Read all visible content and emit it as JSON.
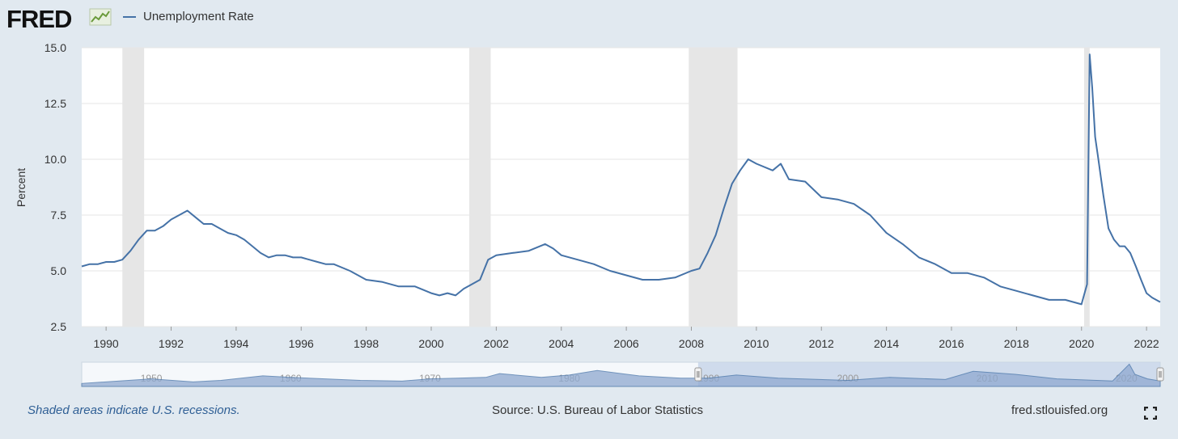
{
  "header": {
    "logo_text": "FRED",
    "logo_icon": "fred-chart-logo-icon",
    "legend_label": "Unemployment Rate",
    "series_color": "#4572a7"
  },
  "footer": {
    "recession_note": "Shaded areas indicate U.S. recessions.",
    "source": "Source: U.S. Bureau of Labor Statistics",
    "site": "fred.stlouisfed.org",
    "fullscreen_icon": "fullscreen-icon"
  },
  "chart_data": {
    "type": "line",
    "title": "",
    "xlabel": "",
    "ylabel": "Percent",
    "xlim": [
      1989.25,
      2022.42
    ],
    "ylim": [
      2.5,
      15.0
    ],
    "yticks": [
      "2.5",
      "5.0",
      "7.5",
      "10.0",
      "12.5",
      "15.0"
    ],
    "xticks": [
      "1990",
      "1992",
      "1994",
      "1996",
      "1998",
      "2000",
      "2002",
      "2004",
      "2006",
      "2008",
      "2010",
      "2012",
      "2014",
      "2016",
      "2018",
      "2020",
      "2022"
    ],
    "grid": true,
    "legend_position": "top-left",
    "recessions": [
      [
        1990.5,
        1991.17
      ],
      [
        2001.17,
        2001.83
      ],
      [
        2007.92,
        2009.42
      ],
      [
        2020.08,
        2020.25
      ]
    ],
    "series": [
      {
        "name": "Unemployment Rate",
        "color": "#4572a7",
        "x": [
          1989.25,
          1989.5,
          1989.75,
          1990.0,
          1990.25,
          1990.5,
          1990.75,
          1991.0,
          1991.25,
          1991.5,
          1991.75,
          1992.0,
          1992.25,
          1992.5,
          1992.75,
          1993.0,
          1993.25,
          1993.5,
          1993.75,
          1994.0,
          1994.25,
          1994.5,
          1994.75,
          1995.0,
          1995.25,
          1995.5,
          1995.75,
          1996.0,
          1996.25,
          1996.5,
          1996.75,
          1997.0,
          1997.5,
          1998.0,
          1998.5,
          1999.0,
          1999.5,
          2000.0,
          2000.25,
          2000.5,
          2000.75,
          2001.0,
          2001.25,
          2001.5,
          2001.75,
          2002.0,
          2002.5,
          2003.0,
          2003.5,
          2003.75,
          2004.0,
          2004.5,
          2005.0,
          2005.5,
          2006.0,
          2006.5,
          2007.0,
          2007.5,
          2008.0,
          2008.25,
          2008.5,
          2008.75,
          2009.0,
          2009.25,
          2009.5,
          2009.75,
          2010.0,
          2010.5,
          2010.75,
          2011.0,
          2011.5,
          2012.0,
          2012.5,
          2013.0,
          2013.5,
          2014.0,
          2014.5,
          2015.0,
          2015.5,
          2016.0,
          2016.5,
          2017.0,
          2017.5,
          2018.0,
          2018.5,
          2019.0,
          2019.5,
          2020.0,
          2020.17,
          2020.25,
          2020.33,
          2020.42,
          2020.5,
          2020.67,
          2020.83,
          2021.0,
          2021.17,
          2021.33,
          2021.5,
          2021.67,
          2021.83,
          2022.0,
          2022.17,
          2022.42
        ],
        "values": [
          5.2,
          5.3,
          5.3,
          5.4,
          5.4,
          5.5,
          5.9,
          6.4,
          6.8,
          6.8,
          7.0,
          7.3,
          7.5,
          7.7,
          7.4,
          7.1,
          7.1,
          6.9,
          6.7,
          6.6,
          6.4,
          6.1,
          5.8,
          5.6,
          5.7,
          5.7,
          5.6,
          5.6,
          5.5,
          5.4,
          5.3,
          5.3,
          5.0,
          4.6,
          4.5,
          4.3,
          4.3,
          4.0,
          3.9,
          4.0,
          3.9,
          4.2,
          4.4,
          4.6,
          5.5,
          5.7,
          5.8,
          5.9,
          6.2,
          6.0,
          5.7,
          5.5,
          5.3,
          5.0,
          4.8,
          4.6,
          4.6,
          4.7,
          5.0,
          5.1,
          5.8,
          6.6,
          7.8,
          8.9,
          9.5,
          10.0,
          9.8,
          9.5,
          9.8,
          9.1,
          9.0,
          8.3,
          8.2,
          8.0,
          7.5,
          6.7,
          6.2,
          5.6,
          5.3,
          4.9,
          4.9,
          4.7,
          4.3,
          4.1,
          3.9,
          3.7,
          3.7,
          3.5,
          4.4,
          14.7,
          13.2,
          11.0,
          10.2,
          8.4,
          6.9,
          6.4,
          6.1,
          6.1,
          5.8,
          5.2,
          4.6,
          4.0,
          3.8,
          3.6
        ]
      }
    ]
  },
  "navigator": {
    "ticks": [
      "1950",
      "1960",
      "1970",
      "1980",
      "1990",
      "2000",
      "2010",
      "2020"
    ]
  }
}
